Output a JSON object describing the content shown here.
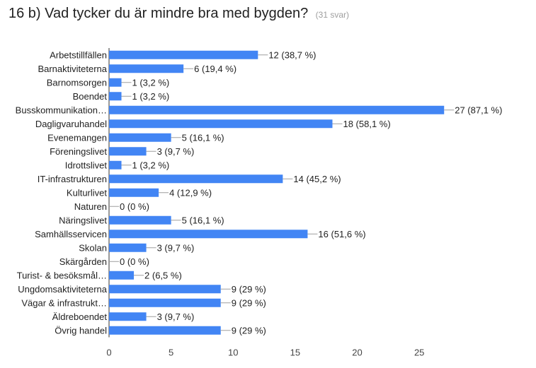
{
  "chart_data": {
    "type": "bar",
    "orientation": "horizontal",
    "title": "16 b) Vad tycker du är mindre bra med bygden?",
    "subtitle": "(31 svar)",
    "categories": [
      "Arbetstillfällen",
      "Barnaktiviteterna",
      "Barnomsorgen",
      "Boendet",
      "Busskommunikation…",
      "Dagligvaruhandel",
      "Evenemangen",
      "Föreningslivet",
      "Idrottslivet",
      "IT-infrastrukturen",
      "Kulturlivet",
      "Naturen",
      "Näringslivet",
      "Samhällsservicen",
      "Skolan",
      "Skärgården",
      "Turist- & besöksmål…",
      "Ungdomsaktiviteterna",
      "Vägar & infrastrukt…",
      "Äldreboendet",
      "Övrig handel"
    ],
    "values": [
      12,
      6,
      1,
      1,
      27,
      18,
      5,
      3,
      1,
      14,
      4,
      0,
      5,
      16,
      3,
      0,
      2,
      9,
      9,
      3,
      9
    ],
    "data_labels": [
      "12 (38,7 %)",
      "6 (19,4 %)",
      "1 (3,2 %)",
      "1 (3,2 %)",
      "27 (87,1 %)",
      "18 (58,1 %)",
      "5 (16,1 %)",
      "3 (9,7 %)",
      "1 (3,2 %)",
      "14 (45,2 %)",
      "4 (12,9 %)",
      "0 (0 %)",
      "5 (16,1 %)",
      "16 (51,6 %)",
      "3 (9,7 %)",
      "0 (0 %)",
      "2 (6,5 %)",
      "9 (29 %)",
      "9 (29 %)",
      "3 (9,7 %)",
      "9 (29 %)"
    ],
    "xlim": [
      0,
      27.5
    ],
    "xticks": [
      0,
      5,
      10,
      15,
      20,
      25
    ],
    "xlabel": "",
    "ylabel": "",
    "grid": false,
    "colors": {
      "bar": "#4285f4"
    }
  }
}
